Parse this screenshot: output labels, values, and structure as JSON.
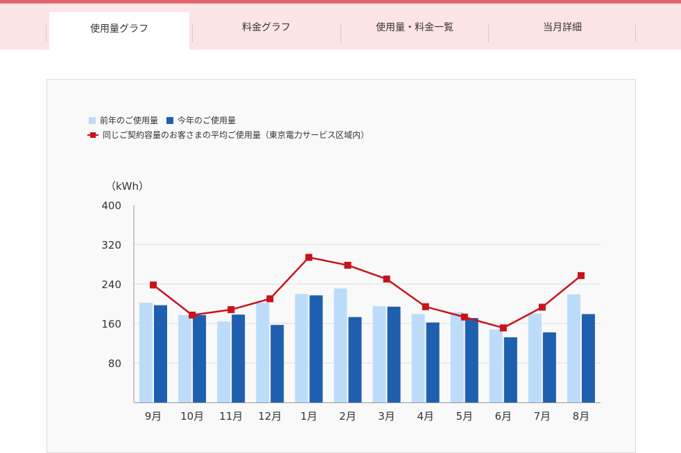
{
  "tabs": [
    {
      "label": "使用量グラフ",
      "active": true
    },
    {
      "label": "料金グラフ",
      "active": false
    },
    {
      "label": "使用量・料金一覧",
      "active": false
    },
    {
      "label": "当月詳細",
      "active": false
    }
  ],
  "colors": {
    "accent_bar": "#e4666c",
    "tab_bg": "#fde4e6",
    "prev_year": "#bcdcfa",
    "this_year": "#1f5faf",
    "average": "#c9121c"
  },
  "chart_data": {
    "type": "bar",
    "unit_label": "（kWh）",
    "categories": [
      "9月",
      "10月",
      "11月",
      "12月",
      "1月",
      "2月",
      "3月",
      "4月",
      "5月",
      "6月",
      "7月",
      "8月"
    ],
    "ylim": [
      0,
      400
    ],
    "yticks": [
      80,
      160,
      240,
      320,
      400
    ],
    "grid": true,
    "legend_position": "top-left",
    "series": [
      {
        "name": "前年のご使用量",
        "kind": "bar",
        "color": "#bcdcfa",
        "values": [
          202,
          177,
          164,
          202,
          220,
          231,
          195,
          179,
          183,
          148,
          180,
          219
        ]
      },
      {
        "name": "今年のご使用量",
        "kind": "bar",
        "color": "#1f5faf",
        "values": [
          197,
          177,
          178,
          157,
          217,
          173,
          194,
          162,
          171,
          132,
          142,
          179
        ]
      },
      {
        "name": "同じご契約容量のお客さまの平均ご使用量（東京電力サービス区域内）",
        "kind": "line",
        "color": "#c9121c",
        "values": [
          238,
          177,
          188,
          210,
          294,
          278,
          250,
          194,
          173,
          151,
          193,
          257
        ]
      }
    ]
  }
}
